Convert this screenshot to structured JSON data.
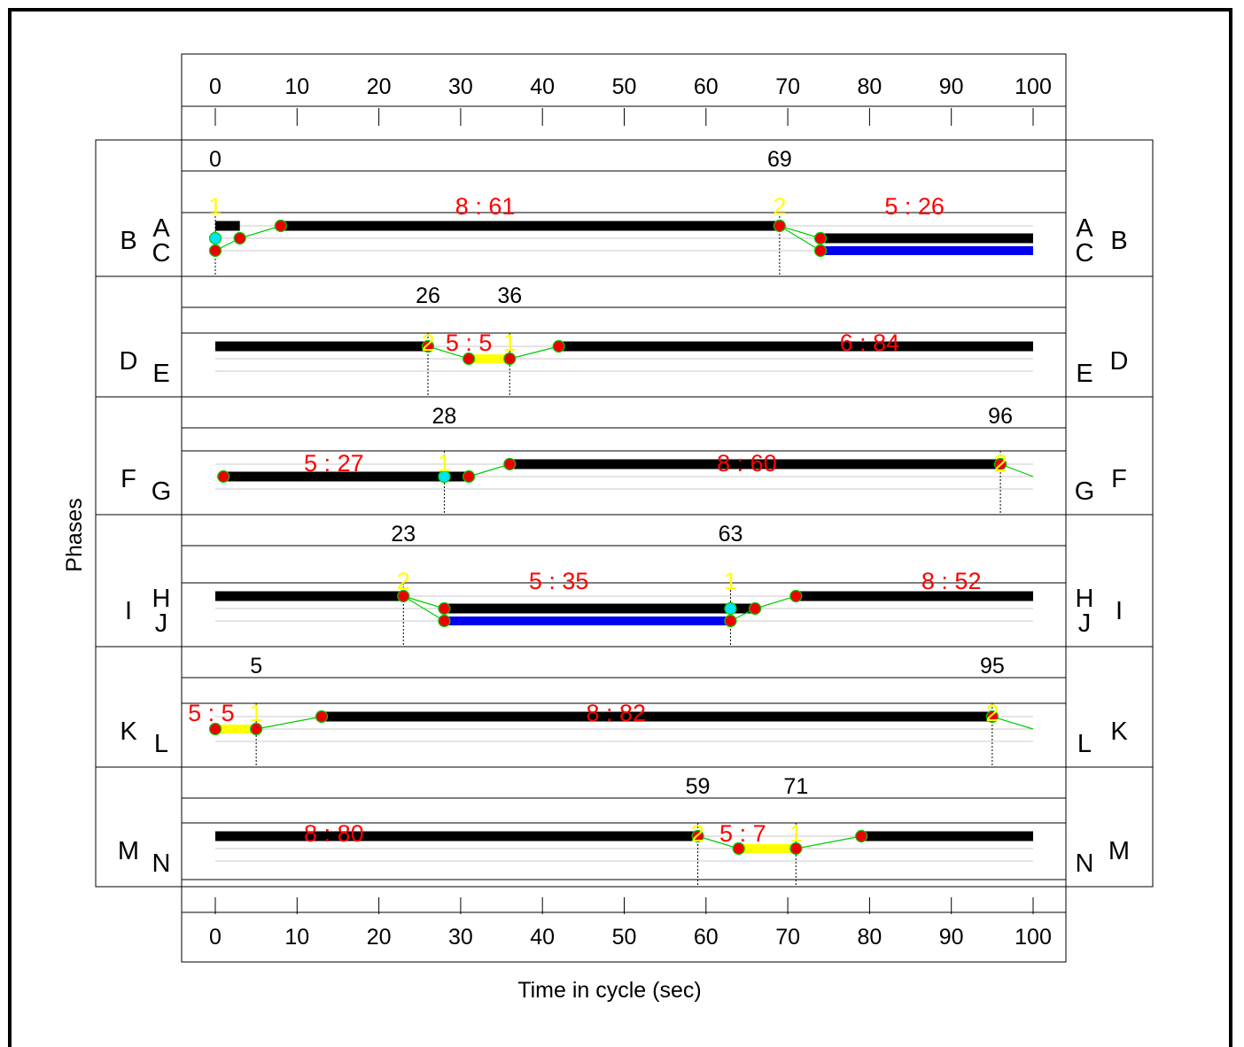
{
  "chart_data": {
    "type": "timing",
    "xlabel": "Time in cycle (sec)",
    "ylabel": "Phases",
    "xlim": [
      0,
      100
    ],
    "ticks": [
      0,
      10,
      20,
      30,
      40,
      50,
      60,
      70,
      80,
      90,
      100
    ],
    "grid": false,
    "colors": {
      "bar": "#000000",
      "alt_bar": "#0000ee",
      "transition_bar": "#ffff00",
      "interval_label": "#ff0000",
      "stage_label": "#ffff00",
      "marker_red": "#ee0000",
      "marker_cyan": "#00e5ee",
      "link": "#00cc00"
    },
    "groups": [
      {
        "left_outer": "B",
        "right_outer": "B",
        "upper_phase": "A",
        "lower_phase": "C",
        "times": [
          0,
          69
        ],
        "stages": [
          {
            "label": "1",
            "t": 0
          },
          {
            "label": "2",
            "t": 69
          }
        ],
        "intervals": [
          {
            "label": "8 : 61",
            "t": 33
          },
          {
            "label": "5 : 26",
            "t": 85.5
          }
        ],
        "segments": [
          {
            "lane": "upper",
            "from": 0,
            "to": 3,
            "color": "bar"
          },
          {
            "lane": "upper",
            "from": 8,
            "to": 69,
            "color": "bar"
          },
          {
            "lane": "mid",
            "from": 74,
            "to": 100,
            "color": "bar"
          },
          {
            "lane": "lower",
            "from": 74,
            "to": 100,
            "color": "alt_bar"
          }
        ],
        "markers": [
          {
            "lane": "mid",
            "t": 0,
            "color": "marker_cyan"
          },
          {
            "lane": "lower",
            "t": 0,
            "color": "marker_red"
          },
          {
            "lane": "mid",
            "t": 3,
            "color": "marker_red"
          },
          {
            "lane": "upper",
            "t": 8,
            "color": "marker_red"
          },
          {
            "lane": "upper",
            "t": 69,
            "color": "marker_red"
          },
          {
            "lane": "mid",
            "t": 74,
            "color": "marker_red"
          },
          {
            "lane": "lower",
            "t": 74,
            "color": "marker_red"
          }
        ],
        "links": [
          {
            "from": [
              "lower",
              0
            ],
            "to": [
              "mid",
              3
            ]
          },
          {
            "from": [
              "mid",
              3
            ],
            "to": [
              "upper",
              8
            ]
          },
          {
            "from": [
              "upper",
              69
            ],
            "to": [
              "mid",
              74
            ]
          },
          {
            "from": [
              "upper",
              69
            ],
            "to": [
              "lower",
              74
            ]
          }
        ],
        "dashed_times": [
          0,
          69
        ]
      },
      {
        "left_outer": "D",
        "right_outer": "D",
        "upper_phase": "",
        "lower_phase": "E",
        "times": [
          26,
          36
        ],
        "stages": [
          {
            "label": "2",
            "t": 26
          },
          {
            "label": "1",
            "t": 36
          }
        ],
        "intervals": [
          {
            "label": "5 : 5",
            "t": 31
          },
          {
            "label": "6 : 84",
            "t": 80
          }
        ],
        "segments": [
          {
            "lane": "upper",
            "from": 0,
            "to": 26,
            "color": "bar"
          },
          {
            "lane": "mid",
            "from": 31,
            "to": 36,
            "color": "transition_bar"
          },
          {
            "lane": "upper",
            "from": 42,
            "to": 100,
            "color": "bar"
          }
        ],
        "markers": [
          {
            "lane": "upper",
            "t": 26,
            "color": "marker_red"
          },
          {
            "lane": "mid",
            "t": 31,
            "color": "marker_red"
          },
          {
            "lane": "mid",
            "t": 36,
            "color": "marker_red"
          },
          {
            "lane": "upper",
            "t": 42,
            "color": "marker_red"
          }
        ],
        "links": [
          {
            "from": [
              "upper",
              26
            ],
            "to": [
              "mid",
              31
            ]
          },
          {
            "from": [
              "mid",
              36
            ],
            "to": [
              "upper",
              42
            ]
          }
        ],
        "dashed_times": [
          26,
          36
        ]
      },
      {
        "left_outer": "F",
        "right_outer": "F",
        "upper_phase": "",
        "lower_phase": "G",
        "times": [
          28,
          96
        ],
        "stages": [
          {
            "label": "1",
            "t": 28
          },
          {
            "label": "2",
            "t": 96
          }
        ],
        "intervals": [
          {
            "label": "5 : 27",
            "t": 14.5
          },
          {
            "label": "8 : 60",
            "t": 65
          }
        ],
        "segments": [
          {
            "lane": "mid",
            "from": 1,
            "to": 31,
            "color": "bar"
          },
          {
            "lane": "upper",
            "from": 36,
            "to": 96,
            "color": "bar"
          }
        ],
        "markers": [
          {
            "lane": "mid",
            "t": 1,
            "color": "marker_red"
          },
          {
            "lane": "mid",
            "t": 28,
            "color": "marker_cyan"
          },
          {
            "lane": "mid",
            "t": 31,
            "color": "marker_red"
          },
          {
            "lane": "upper",
            "t": 36,
            "color": "marker_red"
          },
          {
            "lane": "upper",
            "t": 96,
            "color": "marker_red"
          }
        ],
        "links": [
          {
            "from": [
              "mid",
              31
            ],
            "to": [
              "upper",
              36
            ]
          },
          {
            "from": [
              "upper",
              96
            ],
            "to": [
              "mid",
              100
            ]
          }
        ],
        "dashed_times": [
          28,
          96
        ]
      },
      {
        "left_outer": "I",
        "right_outer": "I",
        "upper_phase": "H",
        "lower_phase": "J",
        "times": [
          23,
          63
        ],
        "stages": [
          {
            "label": "2",
            "t": 23
          },
          {
            "label": "1",
            "t": 63
          }
        ],
        "intervals": [
          {
            "label": "5 : 35",
            "t": 42
          },
          {
            "label": "8 : 52",
            "t": 90
          }
        ],
        "segments": [
          {
            "lane": "upper",
            "from": 0,
            "to": 23,
            "color": "bar"
          },
          {
            "lane": "mid",
            "from": 28,
            "to": 66,
            "color": "bar"
          },
          {
            "lane": "lower",
            "from": 28,
            "to": 63,
            "color": "alt_bar"
          },
          {
            "lane": "upper",
            "from": 71,
            "to": 100,
            "color": "bar"
          }
        ],
        "markers": [
          {
            "lane": "upper",
            "t": 23,
            "color": "marker_red"
          },
          {
            "lane": "mid",
            "t": 28,
            "color": "marker_red"
          },
          {
            "lane": "lower",
            "t": 28,
            "color": "marker_red"
          },
          {
            "lane": "mid",
            "t": 63,
            "color": "marker_cyan"
          },
          {
            "lane": "lower",
            "t": 63,
            "color": "marker_red"
          },
          {
            "lane": "mid",
            "t": 66,
            "color": "marker_red"
          },
          {
            "lane": "upper",
            "t": 71,
            "color": "marker_red"
          }
        ],
        "links": [
          {
            "from": [
              "upper",
              23
            ],
            "to": [
              "mid",
              28
            ]
          },
          {
            "from": [
              "upper",
              23
            ],
            "to": [
              "lower",
              28
            ]
          },
          {
            "from": [
              "lower",
              63
            ],
            "to": [
              "mid",
              66
            ]
          },
          {
            "from": [
              "mid",
              66
            ],
            "to": [
              "upper",
              71
            ]
          }
        ],
        "dashed_times": [
          23,
          63
        ]
      },
      {
        "left_outer": "K",
        "right_outer": "K",
        "upper_phase": "",
        "lower_phase": "L",
        "times": [
          5,
          95
        ],
        "stages": [
          {
            "label": "1",
            "t": 5
          },
          {
            "label": "2",
            "t": 95
          }
        ],
        "intervals": [
          {
            "label": "5 : 5",
            "t": -0.5
          },
          {
            "label": "8 : 82",
            "t": 49
          }
        ],
        "segments": [
          {
            "lane": "mid",
            "from": 0,
            "to": 5,
            "color": "transition_bar"
          },
          {
            "lane": "upper",
            "from": 13,
            "to": 95,
            "color": "bar"
          }
        ],
        "markers": [
          {
            "lane": "mid",
            "t": 0,
            "color": "marker_red"
          },
          {
            "lane": "mid",
            "t": 5,
            "color": "marker_red"
          },
          {
            "lane": "upper",
            "t": 13,
            "color": "marker_red"
          },
          {
            "lane": "upper",
            "t": 95,
            "color": "marker_red"
          }
        ],
        "links": [
          {
            "from": [
              "mid",
              5
            ],
            "to": [
              "upper",
              13
            ]
          },
          {
            "from": [
              "upper",
              95
            ],
            "to": [
              "mid",
              100
            ]
          }
        ],
        "dashed_times": [
          5,
          95
        ]
      },
      {
        "left_outer": "M",
        "right_outer": "M",
        "upper_phase": "",
        "lower_phase": "N",
        "times": [
          59,
          71
        ],
        "stages": [
          {
            "label": "2",
            "t": 59
          },
          {
            "label": "1",
            "t": 71
          }
        ],
        "intervals": [
          {
            "label": "8 : 80",
            "t": 14.5
          },
          {
            "label": "5 : 7",
            "t": 64.5
          }
        ],
        "segments": [
          {
            "lane": "upper",
            "from": 0,
            "to": 59,
            "color": "bar"
          },
          {
            "lane": "mid",
            "from": 64,
            "to": 71,
            "color": "transition_bar"
          },
          {
            "lane": "upper",
            "from": 79,
            "to": 100,
            "color": "bar"
          }
        ],
        "markers": [
          {
            "lane": "upper",
            "t": 59,
            "color": "marker_red"
          },
          {
            "lane": "mid",
            "t": 64,
            "color": "marker_red"
          },
          {
            "lane": "mid",
            "t": 71,
            "color": "marker_red"
          },
          {
            "lane": "upper",
            "t": 79,
            "color": "marker_red"
          }
        ],
        "links": [
          {
            "from": [
              "upper",
              59
            ],
            "to": [
              "mid",
              64
            ]
          },
          {
            "from": [
              "mid",
              71
            ],
            "to": [
              "upper",
              79
            ]
          }
        ],
        "dashed_times": [
          59,
          71
        ]
      }
    ]
  }
}
